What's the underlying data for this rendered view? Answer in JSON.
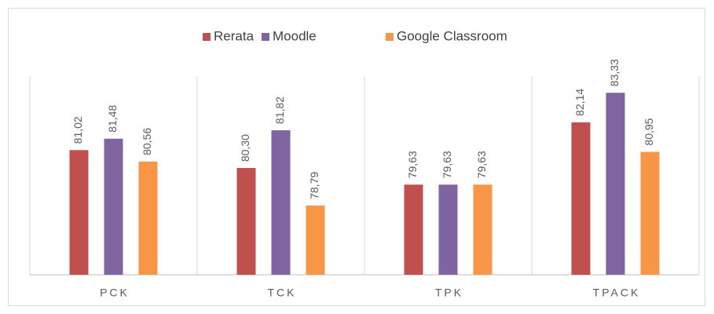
{
  "chart_data": {
    "type": "bar",
    "categories": [
      "PCK",
      "TCK",
      "TPK",
      "TPACK"
    ],
    "series": [
      {
        "name": "Rerata",
        "color": "#c0504d",
        "values": [
          81.02,
          80.3,
          79.63,
          82.14
        ],
        "value_labels": [
          "81,02",
          "80,30",
          "79,63",
          "82,14"
        ]
      },
      {
        "name": "Moodle",
        "color": "#8064a2",
        "values": [
          81.48,
          81.82,
          79.63,
          83.33
        ],
        "value_labels": [
          "81,48",
          "81,82",
          "79,63",
          "83,33"
        ]
      },
      {
        "name": "Google Classroom",
        "color": "#f79646",
        "values": [
          80.56,
          78.79,
          79.63,
          80.95
        ],
        "value_labels": [
          "80,56",
          "78,79",
          "79,63",
          "80,95"
        ]
      }
    ],
    "ylim": [
      76,
      84
    ],
    "legend": "top"
  }
}
